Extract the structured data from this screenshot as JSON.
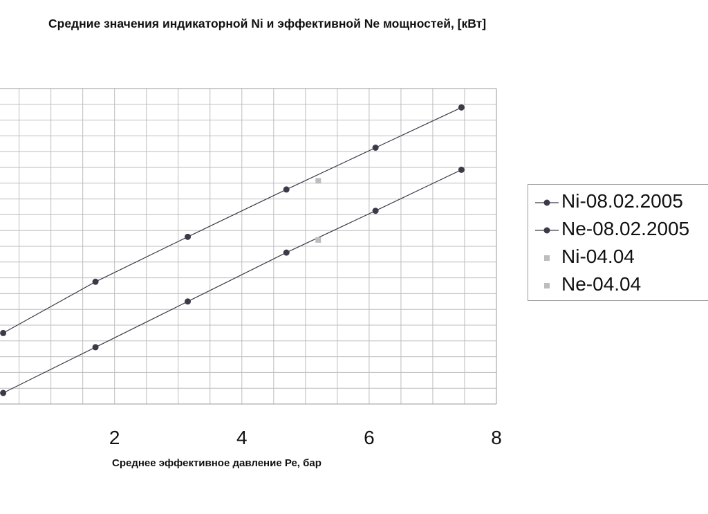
{
  "chart_data": {
    "type": "line",
    "title": "Средние значения индикаторной Ni и эффективной Ne мощностей, [кВт]",
    "xlabel": "Среднее эффективное давление Ре, бар",
    "ylabel": "",
    "xlim": [
      0.2,
      8
    ],
    "x_ticks": [
      "2",
      "4",
      "6",
      "8"
    ],
    "grid": true,
    "legend_position": "right",
    "series": [
      {
        "name": "Ni-08.02.2005",
        "color": "#3a3a48",
        "marker": "circle",
        "line": true,
        "x": [
          0.25,
          1.7,
          3.15,
          4.7,
          6.1,
          7.45
        ],
        "y": [
          0.9,
          1.55,
          2.12,
          2.72,
          3.25,
          3.76
        ]
      },
      {
        "name": "Ne-08.02.2005",
        "color": "#3a3a48",
        "marker": "circle",
        "line": true,
        "x": [
          0.25,
          1.7,
          3.15,
          4.7,
          6.1,
          7.45
        ],
        "y": [
          0.14,
          0.72,
          1.3,
          1.92,
          2.45,
          2.97
        ]
      },
      {
        "name": "Ni-04.04",
        "color": "#bdbdbd",
        "marker": "square",
        "line": false,
        "x": [
          5.2
        ],
        "y": [
          2.83
        ]
      },
      {
        "name": "Ne-04.04",
        "color": "#bdbdbd",
        "marker": "square",
        "line": false,
        "x": [
          5.2
        ],
        "y": [
          2.08
        ]
      }
    ]
  }
}
